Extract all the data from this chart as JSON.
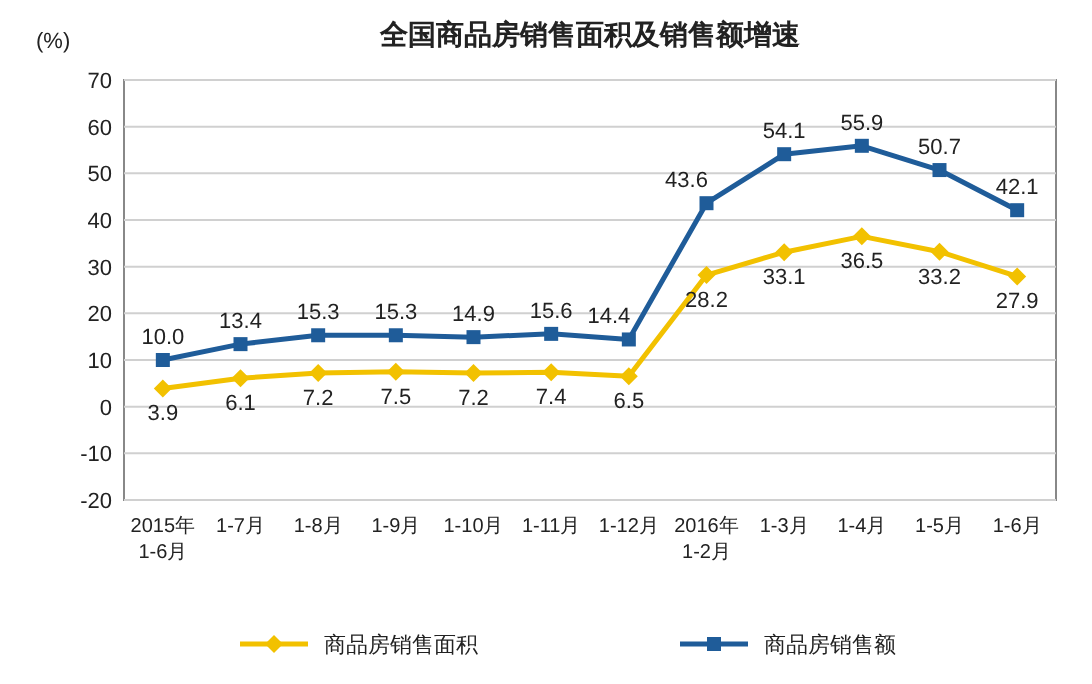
{
  "chart_data": {
    "type": "line",
    "title": "全国商品房销售面积及销售额增速",
    "ylabel": "(%)",
    "categories": [
      "2015年\n1-6月",
      "1-7月",
      "1-8月",
      "1-9月",
      "1-10月",
      "1-11月",
      "1-12月",
      "2016年\n1-2月",
      "1-3月",
      "1-4月",
      "1-5月",
      "1-6月"
    ],
    "series": [
      {
        "name": "商品房销售面积",
        "color": "#f2c100",
        "marker": "diamond",
        "values": [
          3.9,
          6.1,
          7.2,
          7.5,
          7.2,
          7.4,
          6.5,
          28.2,
          33.1,
          36.5,
          33.2,
          27.9
        ],
        "value_labels": [
          "3.9",
          "6.1",
          "7.2",
          "7.5",
          "7.2",
          "7.4",
          "6.5",
          "28.2",
          "33.1",
          "36.5",
          "33.2",
          "27.9"
        ]
      },
      {
        "name": "商品房销售额",
        "color": "#1f5c99",
        "marker": "square",
        "values": [
          10.0,
          13.4,
          15.3,
          15.3,
          14.9,
          15.6,
          14.4,
          43.6,
          54.1,
          55.9,
          50.7,
          42.1
        ],
        "value_labels": [
          "10.0",
          "13.4",
          "15.3",
          "15.3",
          "14.9",
          "15.6",
          "14.4",
          "43.6",
          "54.1",
          "55.9",
          "50.7",
          "42.1"
        ]
      }
    ],
    "ylim": [
      -20,
      70
    ],
    "yticks": [
      -20,
      -10,
      0,
      10,
      20,
      30,
      40,
      50,
      60,
      70
    ],
    "grid": "y",
    "legend": "bottom"
  }
}
